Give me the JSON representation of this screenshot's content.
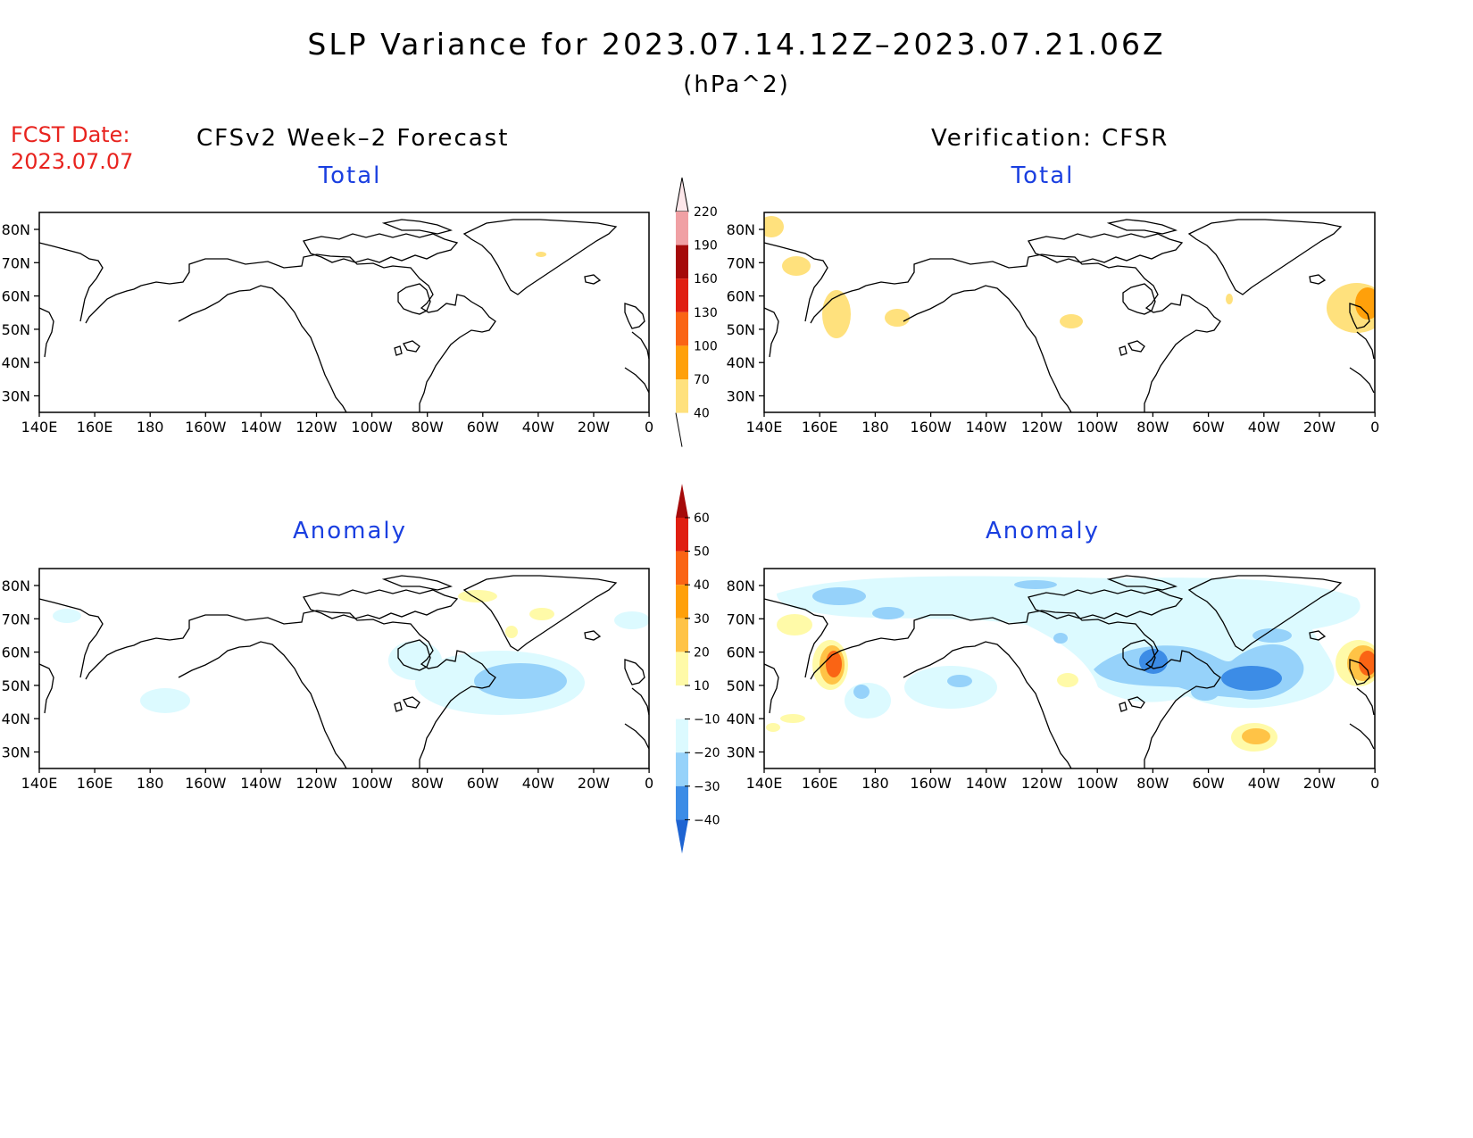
{
  "header": {
    "title": "SLP Variance for 2023.07.14.12Z–2023.07.21.06Z",
    "units": "(hPa^2)",
    "fcst_label": "FCST Date:",
    "fcst_date": "2023.07.07",
    "left_column": "CFSv2 Week–2 Forecast",
    "right_column": "Verification: CFSR"
  },
  "panels": {
    "fcst_total": {
      "title": "Total"
    },
    "verif_total": {
      "title": "Total"
    },
    "fcst_anom": {
      "title": "Anomaly"
    },
    "verif_anom": {
      "title": "Anomaly"
    }
  },
  "axes": {
    "lat_labels": [
      "80N",
      "70N",
      "60N",
      "50N",
      "40N",
      "30N"
    ],
    "lon_labels": [
      "140E",
      "160E",
      "180",
      "160W",
      "140W",
      "120W",
      "100W",
      "80W",
      "60W",
      "40W",
      "20W",
      "0"
    ]
  },
  "colorbar_total": {
    "labels": [
      "220",
      "190",
      "160",
      "130",
      "100",
      "70",
      "40"
    ],
    "colors": [
      "#fde7ea",
      "#f0a0a4",
      "#a50a0a",
      "#e01e10",
      "#fa6414",
      "#ffa00a",
      "#ffe17d"
    ]
  },
  "colorbar_anomaly": {
    "labels": [
      "60",
      "50",
      "40",
      "30",
      "20",
      "10",
      "−10",
      "−20",
      "−30",
      "−40"
    ],
    "colors": [
      "#a50a0a",
      "#e01e10",
      "#fa6414",
      "#ffa00a",
      "#ffc346",
      "#fffaa8",
      "#ffffff",
      "#dcfaff",
      "#96d2fa",
      "#3c8ce6",
      "#1e64d2"
    ]
  }
}
